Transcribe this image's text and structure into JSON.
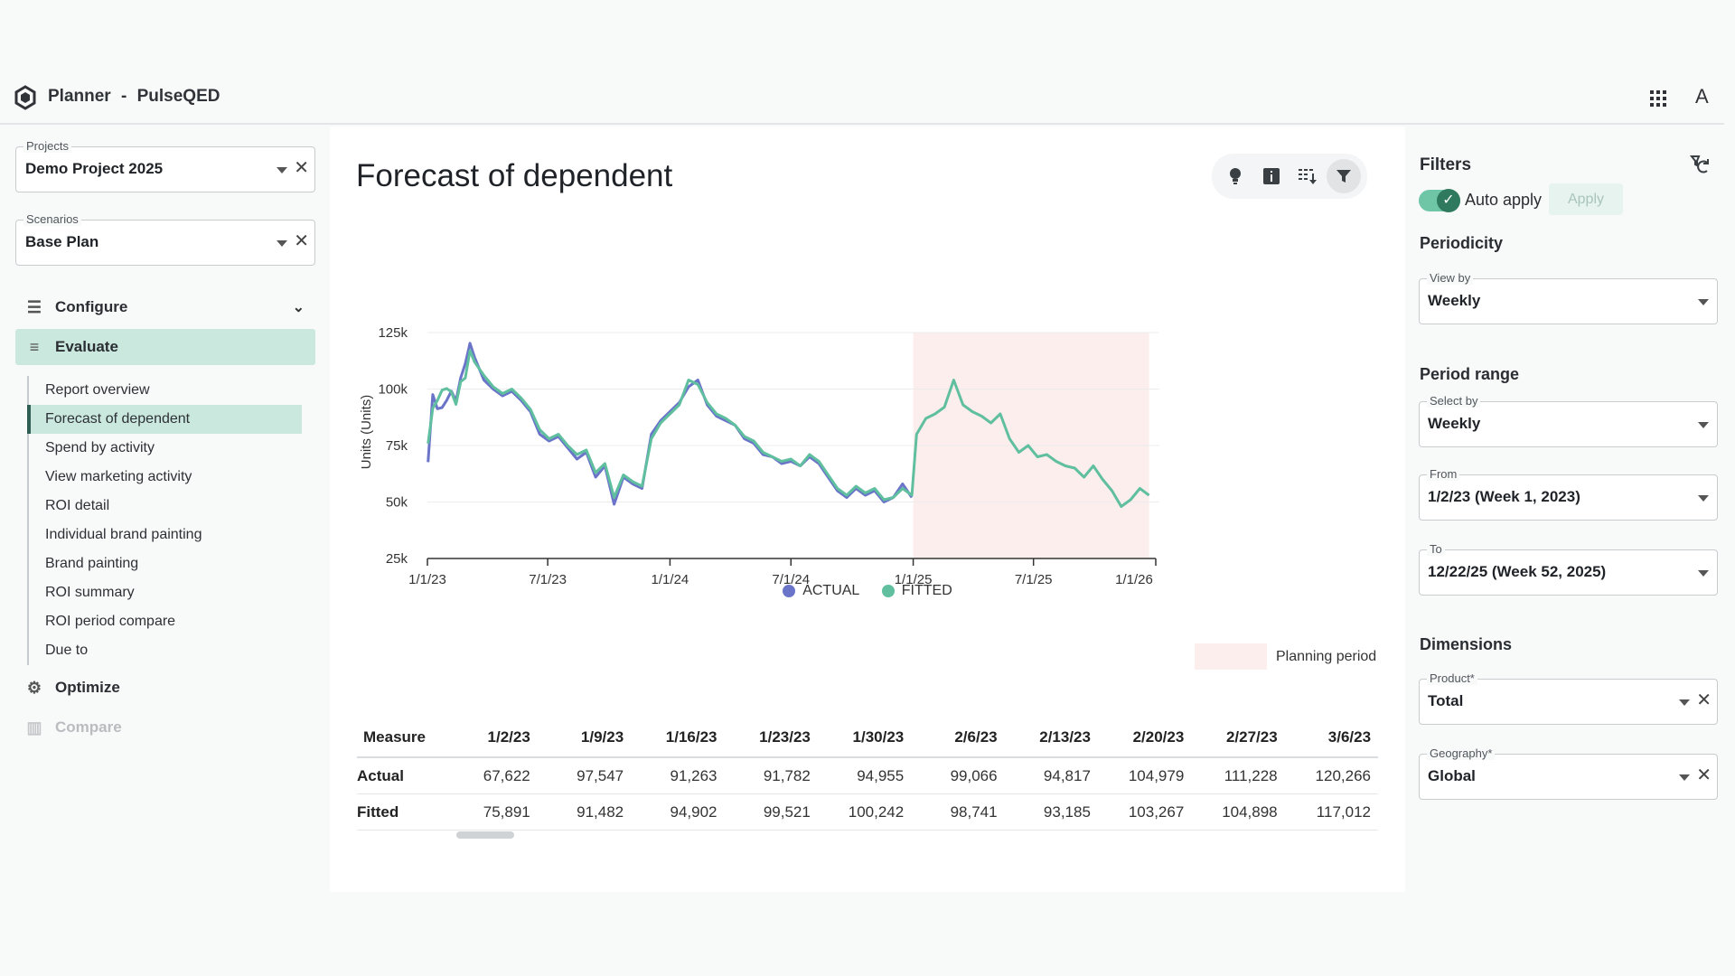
{
  "app": {
    "name": "Planner",
    "separator": "-",
    "org": "PulseQED",
    "avatar_letter": "A"
  },
  "sidebar": {
    "projects": {
      "label": "Projects",
      "value": "Demo Project 2025"
    },
    "scenarios": {
      "label": "Scenarios",
      "value": "Base Plan"
    },
    "sections": {
      "configure": "Configure",
      "evaluate": "Evaluate",
      "optimize": "Optimize",
      "compare": "Compare"
    },
    "evaluate_items": [
      "Report overview",
      "Forecast of dependent",
      "Spend by activity",
      "View marketing activity",
      "ROI detail",
      "Individual brand painting",
      "Brand painting",
      "ROI summary",
      "ROI period compare",
      "Due to"
    ],
    "active_item": "Forecast of dependent"
  },
  "main": {
    "title": "Forecast of dependent",
    "toolbar": [
      "lightbulb-icon",
      "info-icon",
      "column-download-icon",
      "filter-icon"
    ],
    "legend": {
      "actual": "ACTUAL",
      "fitted": "FITTED",
      "planning": "Planning period"
    },
    "table": {
      "headers": [
        "Measure",
        "1/2/23",
        "1/9/23",
        "1/16/23",
        "1/23/23",
        "1/30/23",
        "2/6/23",
        "2/13/23",
        "2/20/23",
        "2/27/23",
        "3/6/23"
      ],
      "rows": [
        [
          "Actual",
          "67,622",
          "97,547",
          "91,263",
          "91,782",
          "94,955",
          "99,066",
          "94,817",
          "104,979",
          "111,228",
          "120,266"
        ],
        [
          "Fitted",
          "75,891",
          "91,482",
          "94,902",
          "99,521",
          "100,242",
          "98,741",
          "93,185",
          "103,267",
          "104,898",
          "117,012"
        ]
      ]
    }
  },
  "filters": {
    "title": "Filters",
    "auto_apply": "Auto apply",
    "auto_apply_on": true,
    "apply": "Apply",
    "periodicity": {
      "heading": "Periodicity",
      "view_by_label": "View by",
      "view_by": "Weekly"
    },
    "period_range": {
      "heading": "Period range",
      "select_by_label": "Select by",
      "select_by": "Weekly",
      "from_label": "From",
      "from": "1/2/23 (Week 1, 2023)",
      "to_label": "To",
      "to": "12/22/25 (Week 52, 2025)"
    },
    "dimensions": {
      "heading": "Dimensions",
      "product_label": "Product*",
      "product": "Total",
      "geography_label": "Geography*",
      "geography": "Global"
    }
  },
  "chart_data": {
    "type": "line",
    "ylabel": "Units (Units)",
    "xlabel": "",
    "ylim": [
      25000,
      125000
    ],
    "y_ticks": [
      "25k",
      "50k",
      "75k",
      "100k",
      "125k"
    ],
    "x_ticks": [
      "1/1/23",
      "7/1/23",
      "1/1/24",
      "7/1/24",
      "1/1/25",
      "7/1/25",
      "1/1/26"
    ],
    "x_range": [
      "2023-01-01",
      "2026-01-01"
    ],
    "planning_period": [
      "2025-01-01",
      "2025-12-22"
    ],
    "colors": {
      "actual": "#6a74c9",
      "fitted": "#5fbf9f",
      "planning": "#fdeeee"
    },
    "series": [
      {
        "name": "ACTUAL",
        "x": [
          "2023-01-02",
          "2023-01-09",
          "2023-01-16",
          "2023-01-23",
          "2023-01-30",
          "2023-02-06",
          "2023-02-13",
          "2023-02-20",
          "2023-02-27",
          "2023-03-06",
          "2023-03-13",
          "2023-03-27",
          "2023-04-10",
          "2023-04-24",
          "2023-05-08",
          "2023-05-22",
          "2023-06-05",
          "2023-06-19",
          "2023-07-03",
          "2023-07-17",
          "2023-07-31",
          "2023-08-14",
          "2023-08-28",
          "2023-09-11",
          "2023-09-25",
          "2023-10-09",
          "2023-10-23",
          "2023-11-06",
          "2023-11-20",
          "2023-12-04",
          "2023-12-18",
          "2024-01-01",
          "2024-01-15",
          "2024-01-29",
          "2024-02-12",
          "2024-02-26",
          "2024-03-11",
          "2024-03-25",
          "2024-04-08",
          "2024-04-22",
          "2024-05-06",
          "2024-05-20",
          "2024-06-03",
          "2024-06-17",
          "2024-07-01",
          "2024-07-15",
          "2024-07-29",
          "2024-08-12",
          "2024-08-26",
          "2024-09-09",
          "2024-09-23",
          "2024-10-07",
          "2024-10-21",
          "2024-11-04",
          "2024-11-18",
          "2024-12-02",
          "2024-12-16",
          "2024-12-30"
        ],
        "values": [
          67622,
          97547,
          91263,
          91782,
          94955,
          99066,
          94817,
          104979,
          111228,
          120266,
          114000,
          104000,
          100000,
          97000,
          99000,
          95000,
          90000,
          80000,
          77000,
          79000,
          74000,
          69000,
          72000,
          61000,
          66000,
          49000,
          61000,
          58000,
          56000,
          80000,
          86000,
          90000,
          94000,
          101000,
          104000,
          93000,
          88000,
          86000,
          84000,
          78000,
          76000,
          71000,
          70000,
          67000,
          68000,
          66000,
          70000,
          67000,
          61000,
          55000,
          52000,
          56000,
          53000,
          55000,
          50000,
          52000,
          58000,
          52000
        ]
      },
      {
        "name": "FITTED",
        "x": [
          "2023-01-02",
          "2023-01-09",
          "2023-01-16",
          "2023-01-23",
          "2023-01-30",
          "2023-02-06",
          "2023-02-13",
          "2023-02-20",
          "2023-02-27",
          "2023-03-06",
          "2023-03-13",
          "2023-03-27",
          "2023-04-10",
          "2023-04-24",
          "2023-05-08",
          "2023-05-22",
          "2023-06-05",
          "2023-06-19",
          "2023-07-03",
          "2023-07-17",
          "2023-07-31",
          "2023-08-14",
          "2023-08-28",
          "2023-09-11",
          "2023-09-25",
          "2023-10-09",
          "2023-10-23",
          "2023-11-06",
          "2023-11-20",
          "2023-12-04",
          "2023-12-18",
          "2024-01-01",
          "2024-01-15",
          "2024-01-29",
          "2024-02-12",
          "2024-02-26",
          "2024-03-11",
          "2024-03-25",
          "2024-04-08",
          "2024-04-22",
          "2024-05-06",
          "2024-05-20",
          "2024-06-03",
          "2024-06-17",
          "2024-07-01",
          "2024-07-15",
          "2024-07-29",
          "2024-08-12",
          "2024-08-26",
          "2024-09-09",
          "2024-09-23",
          "2024-10-07",
          "2024-10-21",
          "2024-11-04",
          "2024-11-18",
          "2024-12-02",
          "2024-12-16",
          "2024-12-30",
          "2025-01-06",
          "2025-01-20",
          "2025-02-03",
          "2025-02-17",
          "2025-03-03",
          "2025-03-17",
          "2025-03-31",
          "2025-04-14",
          "2025-04-28",
          "2025-05-12",
          "2025-05-26",
          "2025-06-09",
          "2025-06-23",
          "2025-07-07",
          "2025-07-21",
          "2025-08-04",
          "2025-08-18",
          "2025-09-01",
          "2025-09-15",
          "2025-09-29",
          "2025-10-13",
          "2025-10-27",
          "2025-11-10",
          "2025-11-24",
          "2025-12-08",
          "2025-12-22"
        ],
        "values": [
          75891,
          91482,
          94902,
          99521,
          100242,
          98741,
          93185,
          103267,
          104898,
          117012,
          112000,
          106000,
          101000,
          98000,
          100000,
          96000,
          91000,
          82000,
          78000,
          80000,
          75000,
          71000,
          73000,
          63000,
          67000,
          52000,
          62000,
          59000,
          57000,
          78000,
          85000,
          89000,
          93000,
          104000,
          102000,
          94000,
          89000,
          87000,
          84000,
          79000,
          77000,
          72000,
          70000,
          68000,
          69000,
          66000,
          71000,
          68000,
          62000,
          56000,
          53000,
          57000,
          54000,
          56000,
          51000,
          52000,
          56000,
          53000,
          80000,
          87000,
          89000,
          92000,
          104000,
          93000,
          90000,
          88000,
          85000,
          89000,
          78000,
          72000,
          75000,
          70000,
          71000,
          68000,
          66000,
          65000,
          61000,
          66000,
          60000,
          55000,
          48000,
          51000,
          56000,
          53000
        ]
      }
    ]
  }
}
